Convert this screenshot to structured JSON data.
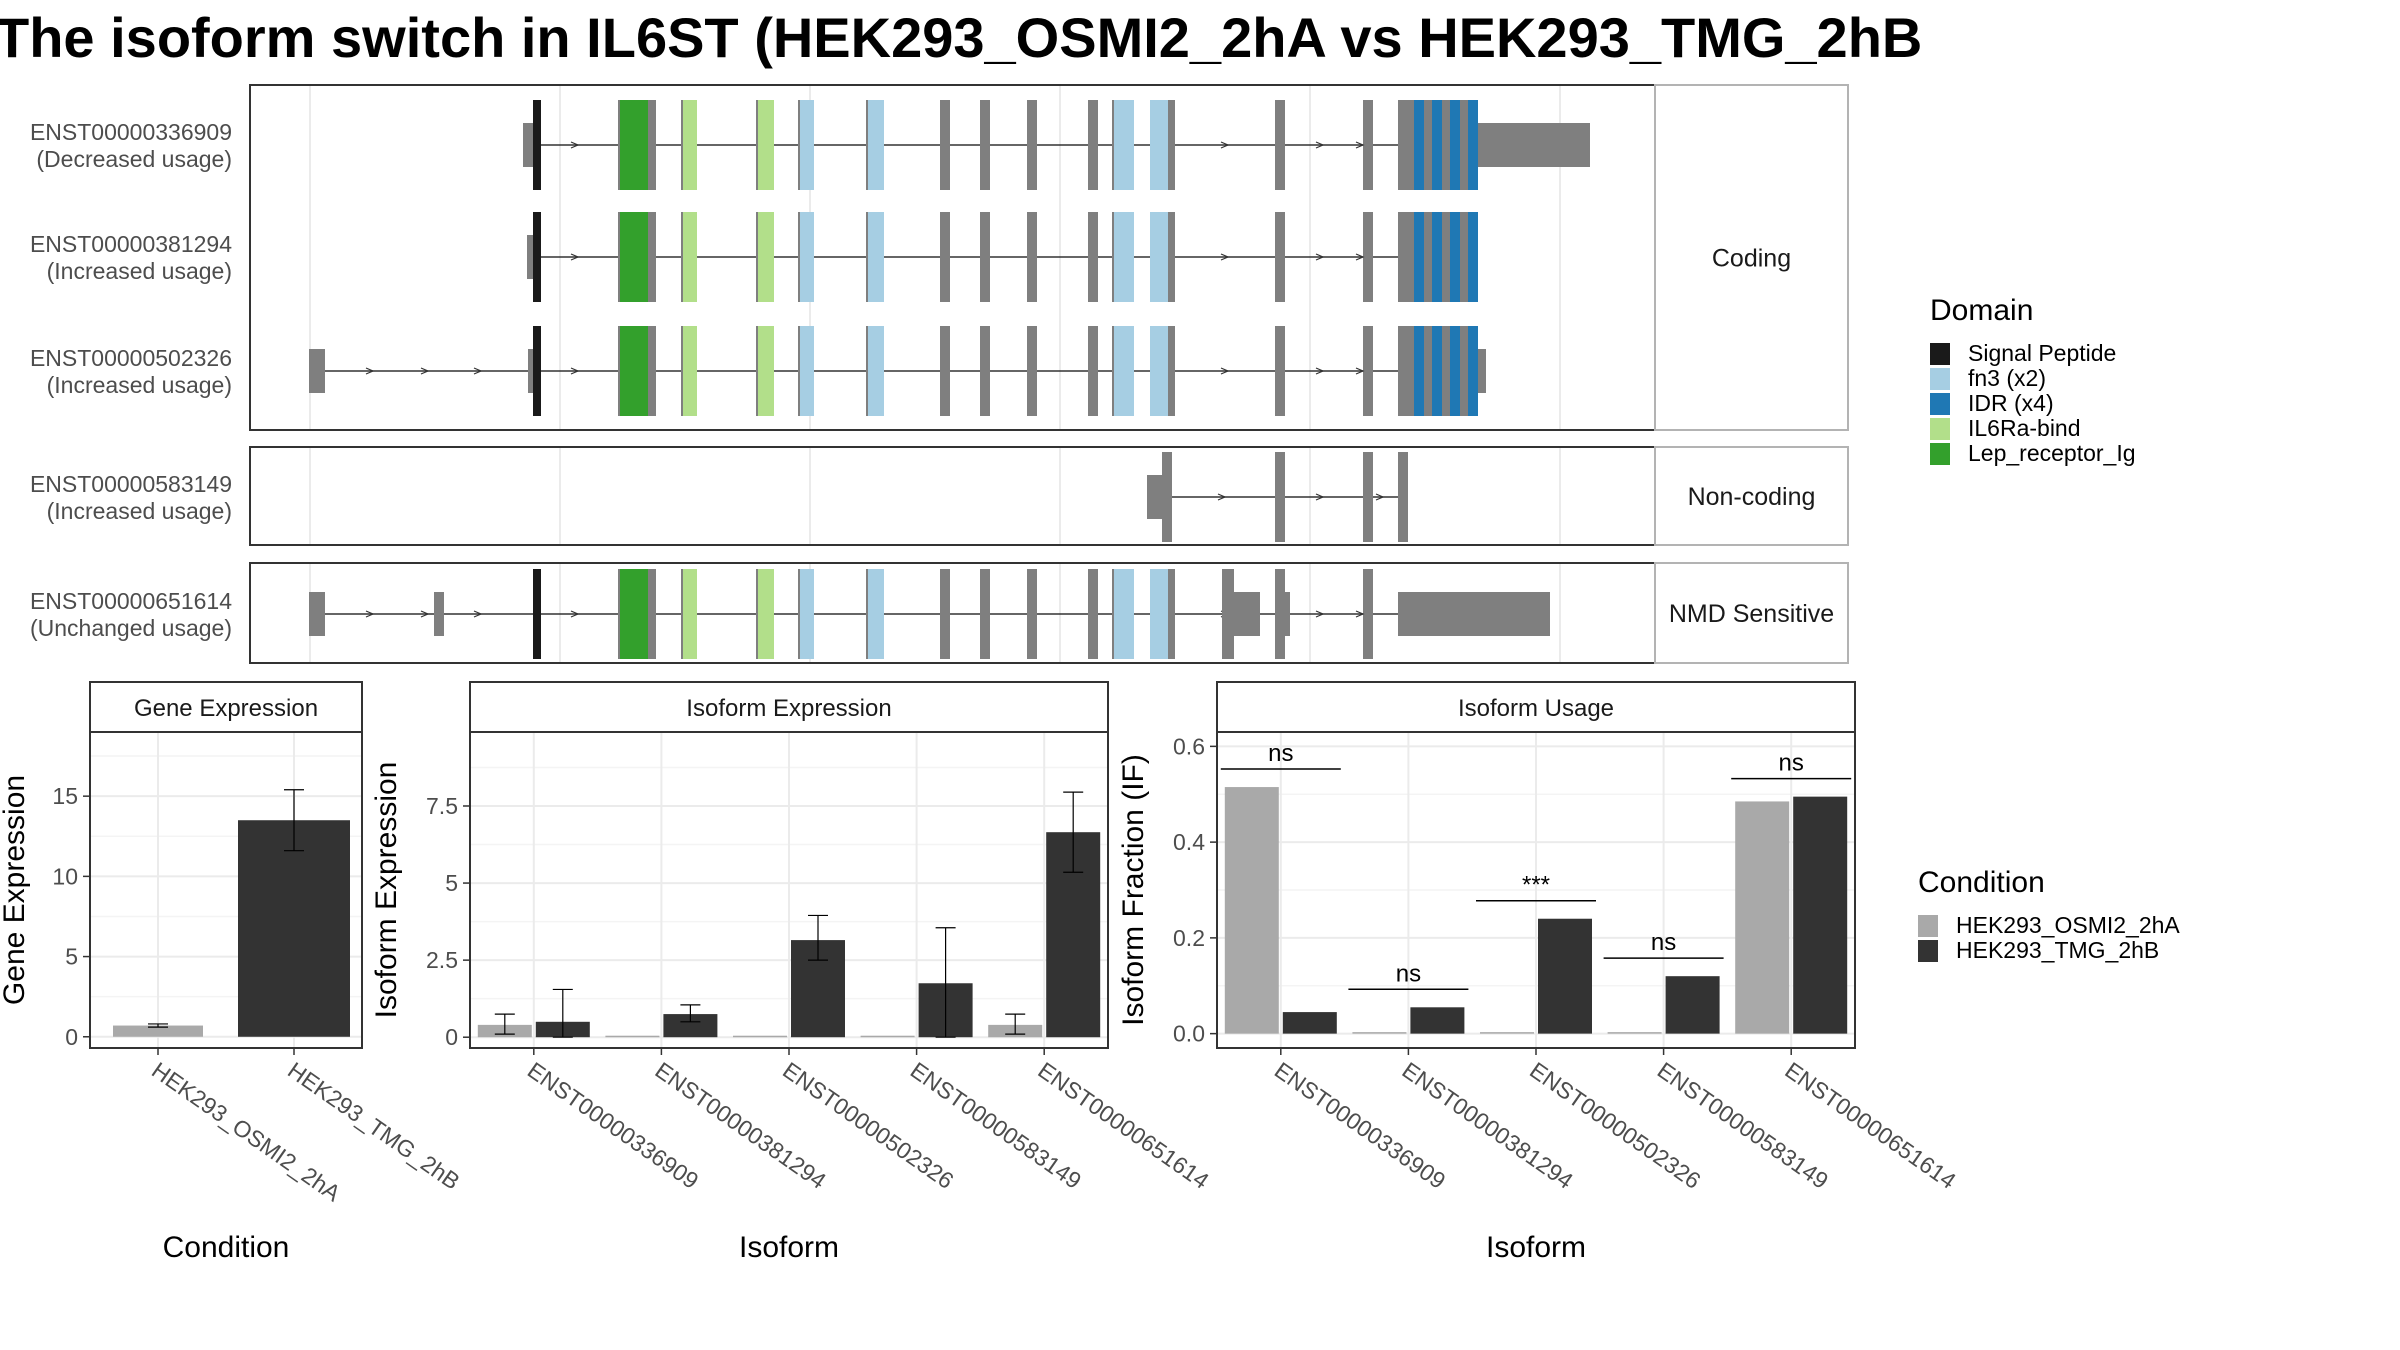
{
  "title": "The isoform switch in IL6ST (HEK293_OSMI2_2hA vs HEK293_TMG_2hB",
  "colors": {
    "signal_peptide": "#1a1a1a",
    "fn3": "#a6cee3",
    "idr": "#1f78b4",
    "il6ra": "#b2df8a",
    "lep": "#33a02c",
    "exon": "#7f7f7f",
    "condA": "#a9a9a9",
    "condB": "#333333",
    "grid": "#ebebeb",
    "strip": "#ffffff"
  },
  "structure": {
    "groups": [
      {
        "label": "Coding",
        "transcripts": [
          "t1",
          "t2",
          "t3"
        ]
      },
      {
        "label": "Non-coding",
        "transcripts": [
          "t4"
        ]
      },
      {
        "label": "NMD Sensitive",
        "transcripts": [
          "t5"
        ]
      }
    ],
    "transcripts": {
      "t1": {
        "id": "ENST00000336909",
        "usage": "(Decreased usage)"
      },
      "t2": {
        "id": "ENST00000381294",
        "usage": "(Increased usage)"
      },
      "t3": {
        "id": "ENST00000502326",
        "usage": "(Increased usage)"
      },
      "t4": {
        "id": "ENST00000583149",
        "usage": "(Increased usage)"
      },
      "t5": {
        "id": "ENST00000651614",
        "usage": "(Unchanged usage)"
      }
    }
  },
  "domain_legend": {
    "title": "Domain",
    "items": [
      {
        "label": "Signal Peptide",
        "color": "#1a1a1a"
      },
      {
        "label": "fn3 (x2)",
        "color": "#a6cee3"
      },
      {
        "label": "IDR (x4)",
        "color": "#1f78b4"
      },
      {
        "label": "IL6Ra-bind",
        "color": "#b2df8a"
      },
      {
        "label": "Lep_receptor_Ig",
        "color": "#33a02c"
      }
    ]
  },
  "condition_legend": {
    "title": "Condition",
    "items": [
      {
        "label": "HEK293_OSMI2_2hA",
        "color": "#a9a9a9"
      },
      {
        "label": "HEK293_TMG_2hB",
        "color": "#333333"
      }
    ]
  },
  "chart_data": [
    {
      "type": "bar",
      "title": "Gene Expression",
      "xlabel": "Condition",
      "ylabel": "Gene Expression",
      "categories": [
        "HEK293_OSMI2_2hA",
        "HEK293_TMG_2hB"
      ],
      "values": [
        0.7,
        13.5
      ],
      "error_low": [
        0.6,
        11.6
      ],
      "error_high": [
        0.8,
        15.4
      ],
      "ylim": [
        -0.7,
        19
      ],
      "yticks": [
        0,
        5,
        10,
        15
      ]
    },
    {
      "type": "bar",
      "title": "Isoform Expression",
      "xlabel": "Isoform",
      "ylabel": "Isoform Expression",
      "categories": [
        "ENST00000336909",
        "ENST00000381294",
        "ENST00000502326",
        "ENST00000583149",
        "ENST00000651614"
      ],
      "series": [
        {
          "name": "HEK293_OSMI2_2hA",
          "values": [
            0.4,
            0.0,
            0.0,
            0.0,
            0.4
          ],
          "error_low": [
            0.1,
            0.0,
            0.0,
            0.0,
            0.1
          ],
          "error_high": [
            0.75,
            0.0,
            0.0,
            0.0,
            0.75
          ]
        },
        {
          "name": "HEK293_TMG_2hB",
          "values": [
            0.5,
            0.75,
            3.15,
            1.75,
            6.65
          ],
          "error_low": [
            0.0,
            0.5,
            2.5,
            0.0,
            5.35
          ],
          "error_high": [
            1.55,
            1.05,
            3.95,
            3.55,
            7.95
          ]
        }
      ],
      "ylim": [
        -0.35,
        9.9
      ],
      "yticks": [
        0.0,
        2.5,
        5.0,
        7.5
      ]
    },
    {
      "type": "bar",
      "title": "Isoform Usage",
      "xlabel": "Isoform",
      "ylabel": "Isoform Fraction (IF)",
      "categories": [
        "ENST00000336909",
        "ENST00000381294",
        "ENST00000502326",
        "ENST00000583149",
        "ENST00000651614"
      ],
      "series": [
        {
          "name": "HEK293_OSMI2_2hA",
          "values": [
            0.515,
            0.0,
            0.0,
            0.0,
            0.485
          ]
        },
        {
          "name": "HEK293_TMG_2hB",
          "values": [
            0.045,
            0.055,
            0.24,
            0.12,
            0.495
          ]
        }
      ],
      "significance": [
        "ns",
        "ns",
        "***",
        "ns",
        "ns"
      ],
      "ylim": [
        -0.03,
        0.63
      ],
      "yticks": [
        0.0,
        0.2,
        0.4,
        0.6
      ],
      "ytick_labels": [
        "0.0",
        "0.2",
        "0.4",
        "0.6"
      ]
    }
  ]
}
